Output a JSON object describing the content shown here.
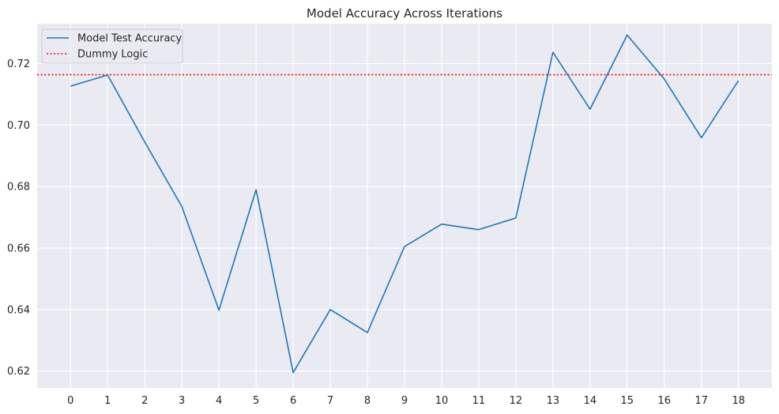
{
  "chart_data": {
    "type": "line",
    "title": "Model Accuracy Across Iterations",
    "xlabel": "",
    "ylabel": "",
    "x": [
      0,
      1,
      2,
      3,
      4,
      5,
      6,
      7,
      8,
      9,
      10,
      11,
      12,
      13,
      14,
      15,
      16,
      17,
      18
    ],
    "xlim": [
      -0.9,
      18.9
    ],
    "ylim": [
      0.6145,
      0.733
    ],
    "x_ticks": [
      "0",
      "1",
      "2",
      "3",
      "4",
      "5",
      "6",
      "7",
      "8",
      "9",
      "10",
      "11",
      "12",
      "13",
      "14",
      "15",
      "16",
      "17",
      "18"
    ],
    "y_ticks": [
      0.62,
      0.64,
      0.66,
      0.68,
      0.7,
      0.72
    ],
    "y_tick_labels": [
      "0.62",
      "0.64",
      "0.66",
      "0.68",
      "0.70",
      "0.72"
    ],
    "grid": true,
    "background": "#eaeaf2",
    "series": [
      {
        "name": "Model Test Accuracy",
        "color": "#1f77b4",
        "style": "solid",
        "values": [
          0.7127,
          0.7163,
          0.6945,
          0.6735,
          0.6398,
          0.679,
          0.6195,
          0.64,
          0.6325,
          0.6605,
          0.6678,
          0.666,
          0.6698,
          0.7237,
          0.7052,
          0.7293,
          0.715,
          0.6959,
          0.7145
        ]
      }
    ],
    "reference_lines": [
      {
        "name": "Dummy Logic",
        "orientation": "horizontal",
        "value": 0.7164,
        "color": "#ff0000",
        "style": "dotted"
      }
    ],
    "legend": {
      "position": "top-left",
      "entries": [
        "Model Test Accuracy",
        "Dummy Logic"
      ]
    }
  }
}
